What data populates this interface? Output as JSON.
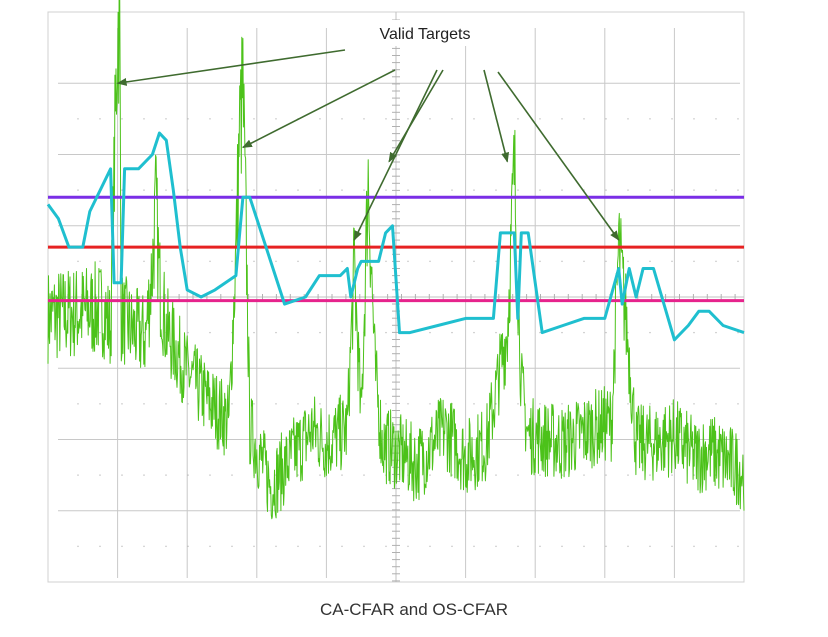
{
  "caption": "CA-CFAR and OS-CFAR",
  "chart_data": {
    "type": "line",
    "title": "",
    "xlabel": "",
    "ylabel": "",
    "grid": true,
    "xlim": [
      0,
      10
    ],
    "ylim": [
      0,
      8
    ],
    "annotations": [
      {
        "text": "Valid Targets",
        "arrow_targets": [
          [
            1.0,
            7.0
          ],
          [
            2.8,
            6.1
          ],
          [
            4.4,
            4.8
          ],
          [
            4.9,
            5.9
          ],
          [
            6.6,
            5.9
          ],
          [
            8.2,
            4.8
          ]
        ]
      }
    ],
    "series": [
      {
        "name": "",
        "kind": "signal",
        "color": "#4cc21a",
        "x": [
          0.0,
          0.8,
          0.9,
          1.0,
          1.02,
          1.03,
          1.05,
          1.2,
          1.4,
          1.5,
          1.55,
          1.6,
          1.7,
          2.0,
          2.3,
          2.6,
          2.7,
          2.75,
          2.8,
          2.85,
          2.9,
          3.2,
          3.5,
          3.8,
          4.0,
          4.3,
          4.4,
          4.5,
          4.6,
          4.7,
          4.8,
          5.0,
          5.3,
          5.7,
          6.0,
          6.3,
          6.6,
          6.7,
          6.8,
          6.9,
          7.0,
          7.4,
          7.8,
          8.1,
          8.2,
          8.3,
          8.45,
          8.7,
          9.0,
          9.3,
          9.5,
          10.0
        ],
        "y": [
          3.8,
          3.9,
          3.6,
          7.9,
          8.05,
          8.05,
          3.8,
          3.6,
          3.5,
          4.5,
          5.4,
          4.3,
          3.6,
          3.0,
          2.6,
          2.3,
          4.7,
          6.4,
          7.0,
          4.8,
          2.2,
          1.4,
          1.8,
          2.2,
          2.0,
          2.2,
          4.5,
          2.3,
          5.8,
          3.0,
          2.0,
          1.9,
          1.7,
          2.2,
          1.8,
          2.0,
          3.6,
          5.9,
          2.8,
          2.1,
          2.1,
          2.0,
          2.2,
          2.3,
          4.8,
          3.8,
          2.0,
          2.0,
          2.1,
          1.8,
          1.9,
          1.6
        ]
      },
      {
        "name": "",
        "kind": "adaptive_threshold",
        "color": "#1fbfcf",
        "x": [
          0.0,
          0.15,
          0.3,
          0.5,
          0.6,
          0.9,
          0.95,
          1.05,
          1.1,
          1.3,
          1.5,
          1.6,
          1.7,
          1.8,
          1.9,
          2.0,
          2.2,
          2.4,
          2.7,
          2.8,
          2.9,
          3.4,
          3.7,
          3.9,
          4.2,
          4.3,
          4.35,
          4.45,
          4.5,
          4.75,
          4.85,
          4.95,
          5.05,
          5.2,
          5.6,
          6.0,
          6.4,
          6.5,
          6.7,
          6.75,
          6.8,
          6.9,
          7.1,
          7.4,
          7.7,
          8.0,
          8.2,
          8.25,
          8.35,
          8.45,
          8.55,
          8.7,
          9.0,
          9.2,
          9.35,
          9.5,
          9.7,
          10.0
        ],
        "y": [
          5.3,
          5.1,
          4.7,
          4.7,
          5.2,
          5.8,
          4.2,
          4.2,
          5.8,
          5.8,
          6.0,
          6.3,
          6.2,
          5.5,
          4.7,
          4.1,
          4.0,
          4.1,
          4.3,
          5.4,
          5.4,
          3.9,
          4.0,
          4.3,
          4.3,
          4.4,
          4.0,
          4.4,
          4.5,
          4.5,
          4.9,
          5.0,
          3.5,
          3.5,
          3.6,
          3.7,
          3.7,
          4.9,
          4.9,
          3.7,
          4.9,
          4.9,
          3.5,
          3.6,
          3.7,
          3.7,
          4.4,
          3.9,
          4.4,
          4.0,
          4.4,
          4.4,
          3.4,
          3.6,
          3.8,
          3.8,
          3.6,
          3.5
        ]
      },
      {
        "name": "",
        "kind": "fixed_threshold",
        "color": "#7a2ee6",
        "x": [
          0,
          10
        ],
        "y": [
          5.4,
          5.4
        ]
      },
      {
        "name": "",
        "kind": "fixed_threshold",
        "color": "#e62222",
        "x": [
          0,
          10
        ],
        "y": [
          4.7,
          4.7
        ]
      },
      {
        "name": "",
        "kind": "fixed_threshold",
        "color": "#e6238c",
        "x": [
          0,
          10
        ],
        "y": [
          3.95,
          3.95
        ]
      }
    ]
  }
}
